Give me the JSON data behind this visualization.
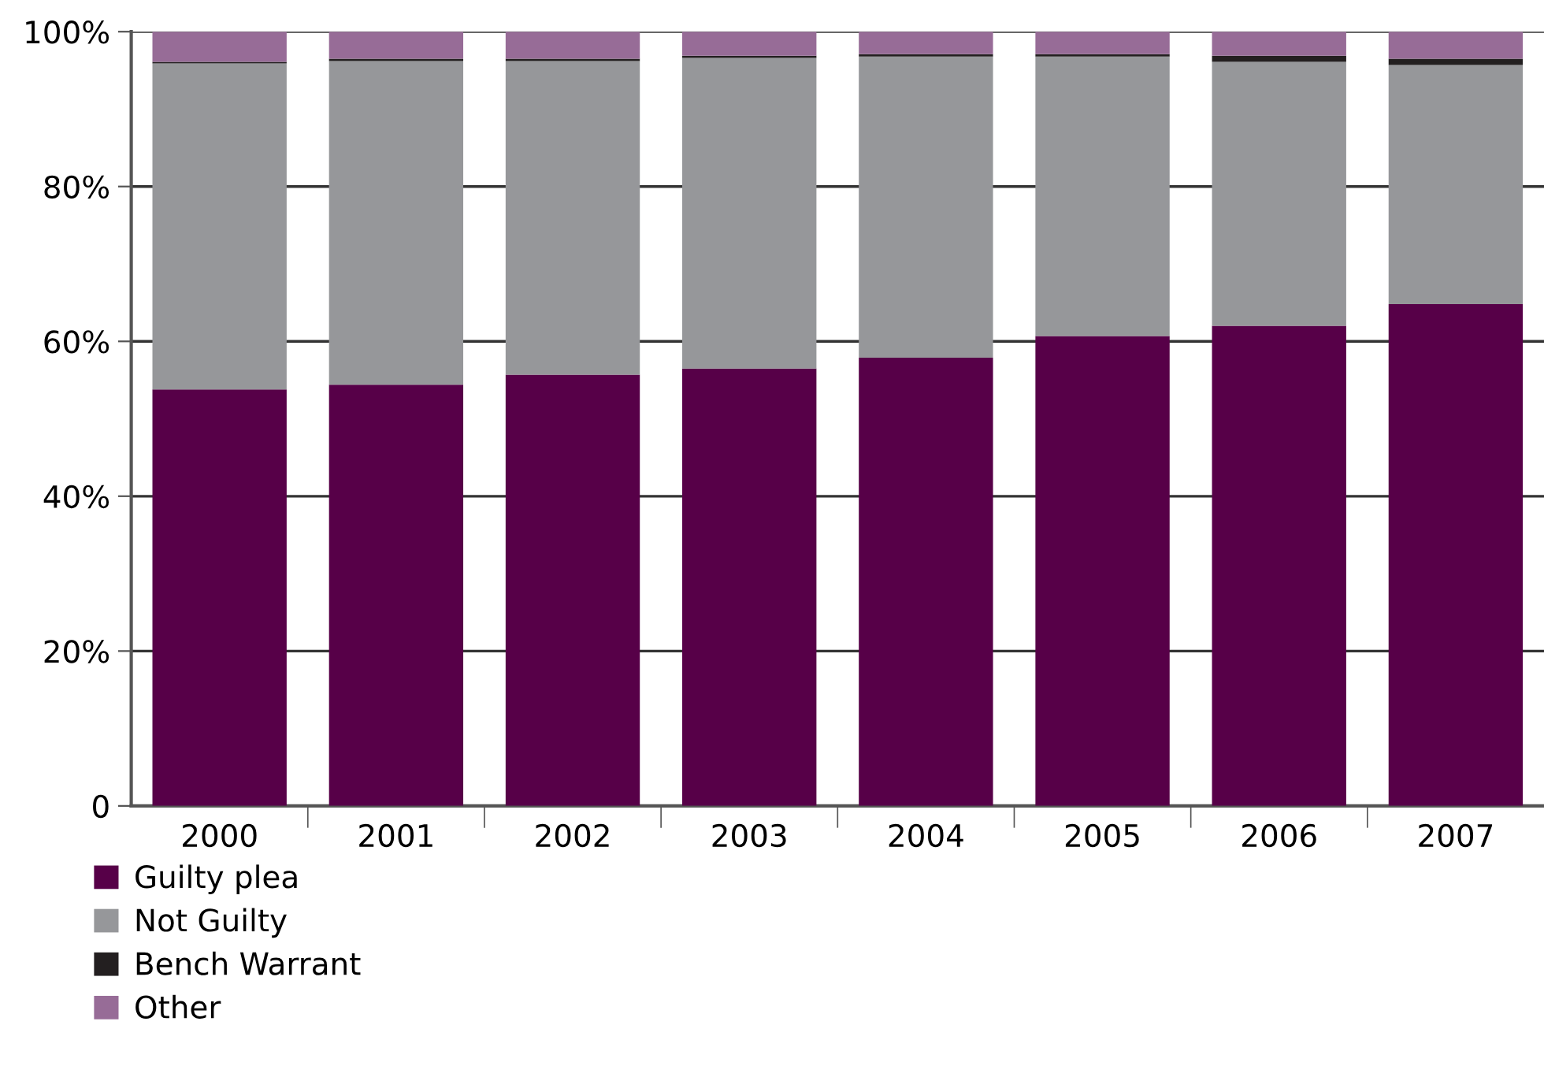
{
  "chart_data": {
    "type": "bar",
    "stacked": true,
    "categories": [
      "2000",
      "2001",
      "2002",
      "2003",
      "2004",
      "2005",
      "2006",
      "2007"
    ],
    "series": [
      {
        "name": "Guilty plea",
        "color": "#570048",
        "values": [
          53.8,
          54.4,
          55.7,
          56.5,
          57.9,
          60.7,
          62.0,
          64.8
        ]
      },
      {
        "name": "Not Guilty",
        "color": "#96979a",
        "values": [
          42.1,
          41.8,
          40.5,
          40.1,
          38.9,
          36.1,
          34.1,
          30.9
        ]
      },
      {
        "name": "Bench Warrant",
        "color": "#231f20",
        "values": [
          0.2,
          0.3,
          0.3,
          0.3,
          0.3,
          0.3,
          0.8,
          0.8
        ]
      },
      {
        "name": "Other",
        "color": "#976c97",
        "values": [
          3.9,
          3.5,
          3.5,
          3.1,
          2.9,
          2.9,
          3.1,
          3.5
        ]
      }
    ],
    "ylim": [
      0,
      100
    ],
    "yticks": [
      {
        "value": 0,
        "label": "0"
      },
      {
        "value": 20,
        "label": "20%"
      },
      {
        "value": 40,
        "label": "40%"
      },
      {
        "value": 60,
        "label": "60%"
      },
      {
        "value": 80,
        "label": "80%"
      },
      {
        "value": 100,
        "label": "100%"
      }
    ],
    "grid": "y",
    "legend": "bottom left"
  }
}
